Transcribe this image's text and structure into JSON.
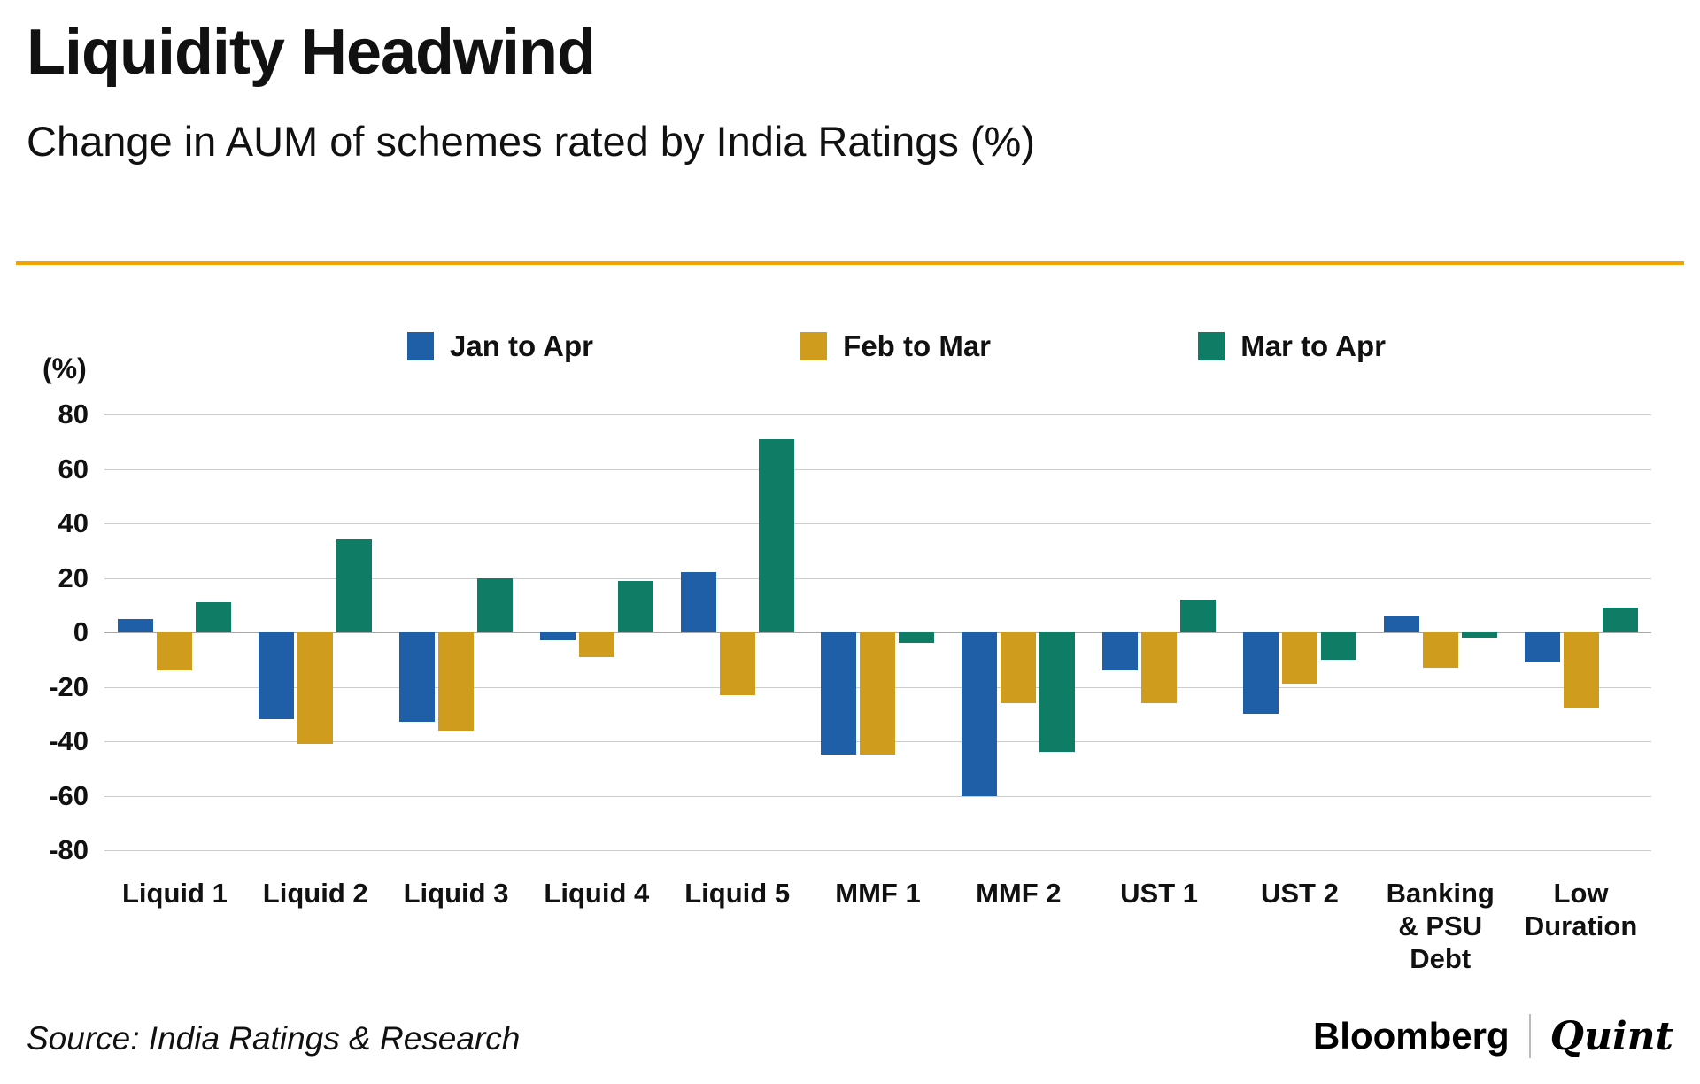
{
  "header": {
    "title": "Liquidity Headwind",
    "subtitle": "Change in AUM of schemes rated by India Ratings (%)"
  },
  "chart_data": {
    "type": "bar",
    "title": "Liquidity Headwind",
    "subtitle": "Change in AUM of schemes rated by India Ratings (%)",
    "unit_label": "(%)",
    "categories": [
      "Liquid 1",
      "Liquid 2",
      "Liquid 3",
      "Liquid 4",
      "Liquid 5",
      "MMF 1",
      "MMF 2",
      "UST 1",
      "UST 2",
      "Banking & PSU Debt",
      "Low Duration"
    ],
    "series": [
      {
        "name": "Jan to Apr",
        "color": "#1f5fa8",
        "values": [
          5,
          -32,
          -33,
          -3,
          22,
          -45,
          -60,
          -14,
          -30,
          6,
          -11
        ]
      },
      {
        "name": "Feb to Mar",
        "color": "#cf9c1d",
        "values": [
          -14,
          -41,
          -36,
          -9,
          -23,
          -45,
          -26,
          -26,
          -19,
          -13,
          -28
        ]
      },
      {
        "name": "Mar to Apr",
        "color": "#0f7c66",
        "values": [
          11,
          34,
          20,
          19,
          71,
          -4,
          -44,
          12,
          -10,
          -2,
          9
        ]
      }
    ],
    "ylim": [
      -80,
      80
    ],
    "yticks": [
      80,
      60,
      40,
      20,
      0,
      -20,
      -40,
      -60,
      -80
    ],
    "grid": true,
    "legend_position": "top"
  },
  "footer": {
    "source": "Source: India Ratings & Research",
    "brand_primary": "Bloomberg",
    "brand_secondary": "Quint"
  },
  "colors": {
    "accent_rule": "#f5a300",
    "grid": "#cccccc",
    "zero_line": "#a8a8a8"
  }
}
